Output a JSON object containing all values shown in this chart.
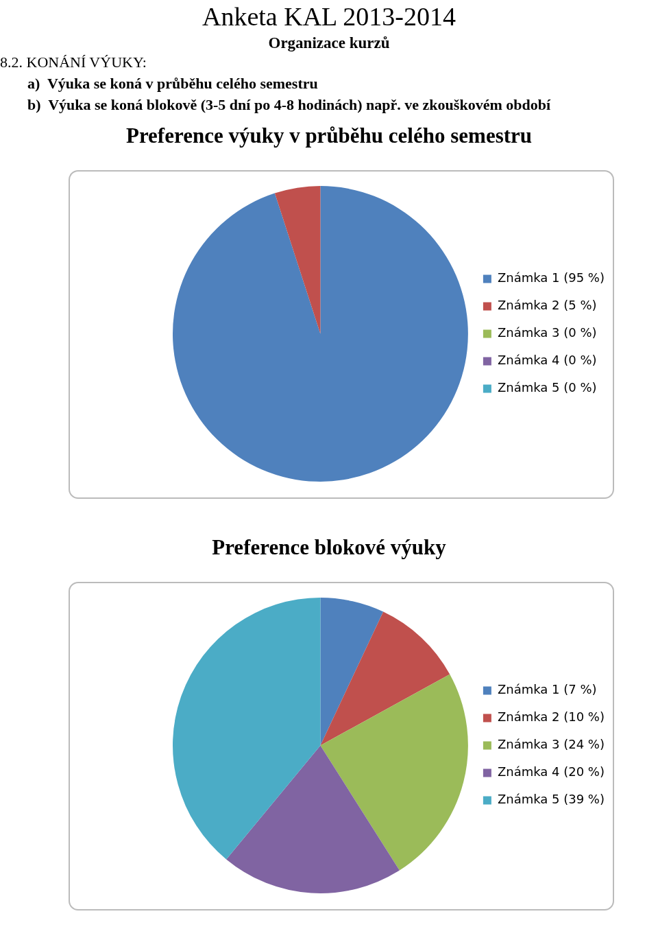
{
  "chart_data": [
    {
      "type": "other",
      "title": "Anketa KAL 2013-2014",
      "subtitle": "Organizace kurzů",
      "annotations": [
        "8.2. KONÁNÍ VÝUKY:",
        "a)  Výuka se koná v průběhu celého semestru",
        "b)  Výuka se koná blokově (3-5 dní po 4-8 hodinách) např. ve zkouškovém období"
      ]
    },
    {
      "type": "pie",
      "title": "Preference výuky v průběhu celého semestru",
      "categories": [
        "Známka 1 (95 %)",
        "Známka 2 (5 %)",
        "Známka 3 (0 %)",
        "Známka 4 (0 %)",
        "Známka 5 (0 %)"
      ],
      "values": [
        95,
        5,
        0,
        0,
        0
      ],
      "colors": [
        "#4f81bd",
        "#c0504d",
        "#9bbb59",
        "#8064a2",
        "#4bacc6"
      ],
      "legend": "right"
    },
    {
      "type": "pie",
      "title": "Preference blokové výuky",
      "categories": [
        "Známka 1 (7 %)",
        "Známka 2 (10 %)",
        "Známka 3 (24 %)",
        "Známka 4 (20 %)",
        "Známka 5 (39 %)"
      ],
      "values": [
        7,
        10,
        24,
        20,
        39
      ],
      "colors": [
        "#4f81bd",
        "#c0504d",
        "#9bbb59",
        "#8064a2",
        "#4bacc6"
      ],
      "legend": "right"
    }
  ]
}
